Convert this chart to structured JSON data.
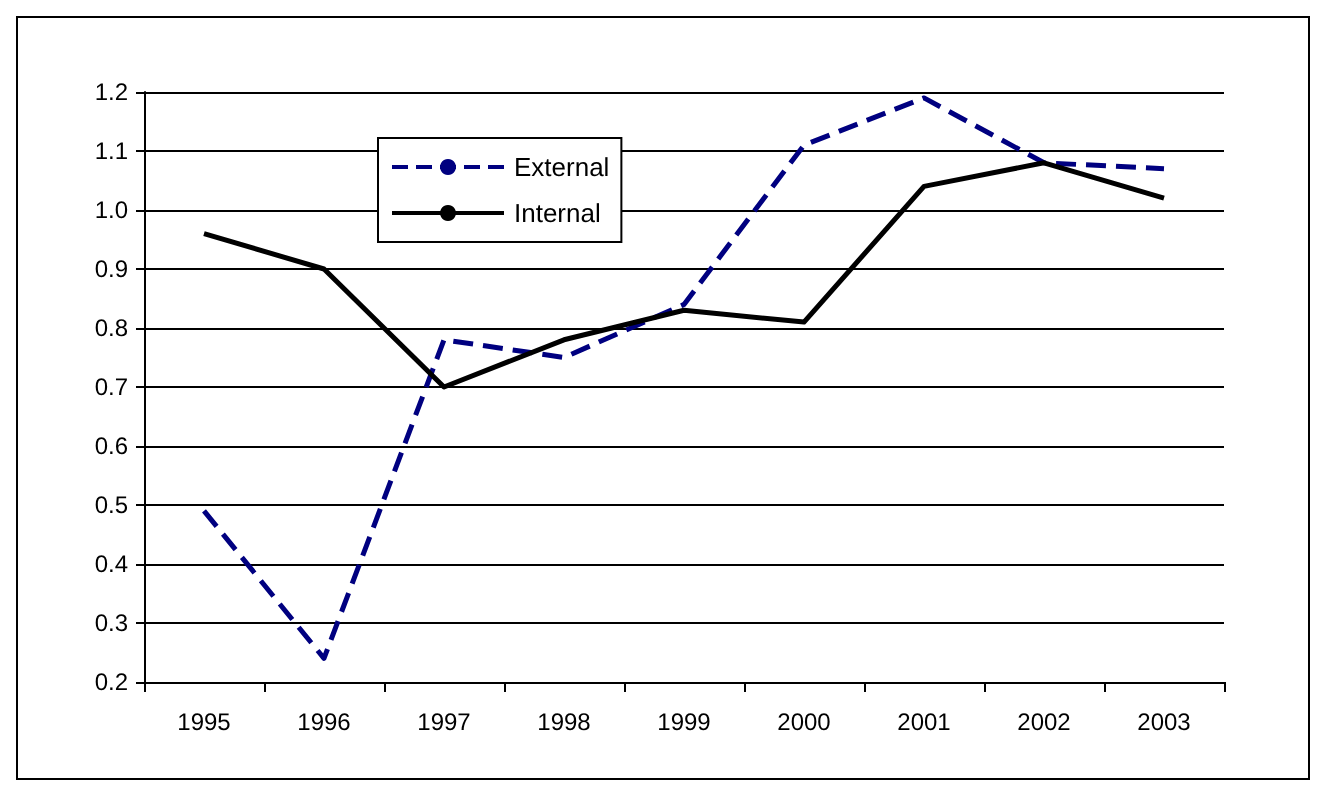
{
  "chart_data": {
    "type": "line",
    "categories": [
      "1995",
      "1996",
      "1997",
      "1998",
      "1999",
      "2000",
      "2001",
      "2002",
      "2003"
    ],
    "series": [
      {
        "name": "External",
        "color": "#000080",
        "line_style": "dashed",
        "values": [
          0.49,
          0.24,
          0.78,
          0.75,
          0.84,
          1.11,
          1.19,
          1.08,
          1.07
        ]
      },
      {
        "name": "Internal",
        "color": "#000000",
        "line_style": "solid",
        "values": [
          0.96,
          0.9,
          0.7,
          0.78,
          0.83,
          0.81,
          1.04,
          1.08,
          1.02
        ]
      }
    ],
    "ylim": [
      0.2,
      1.2
    ],
    "yticks": [
      0.2,
      0.3,
      0.4,
      0.5,
      0.6,
      0.7,
      0.8,
      0.9,
      {
        "value": 1,
        "label": "1.0"
      },
      1.1,
      1.2
    ],
    "grid": "y",
    "legend": "top left",
    "marker": "none"
  }
}
